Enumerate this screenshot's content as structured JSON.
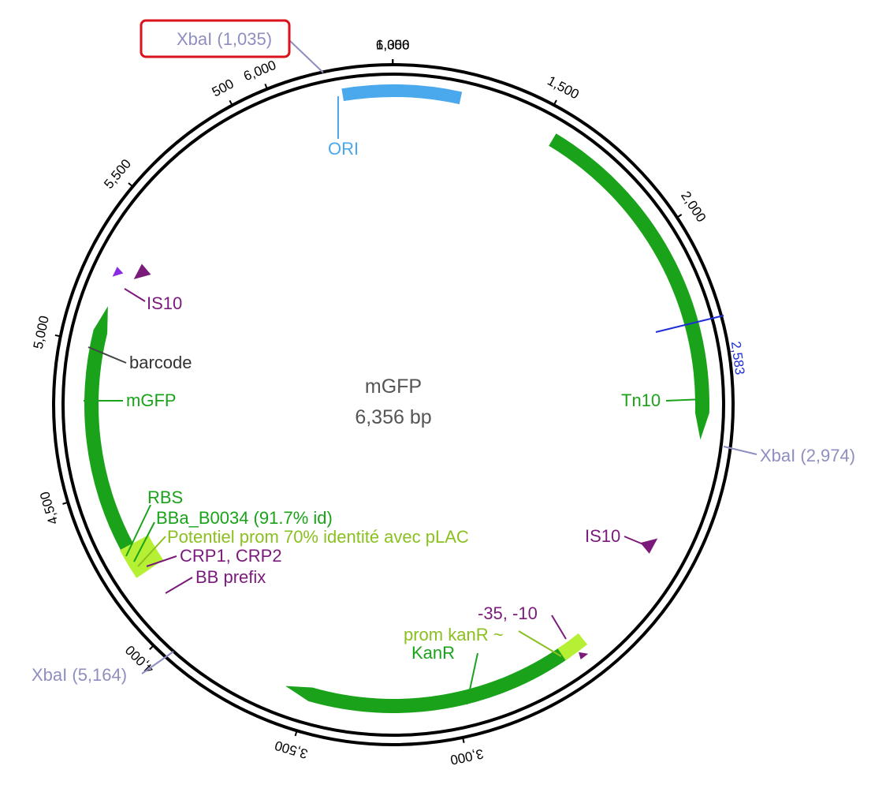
{
  "plasmid": {
    "name": "mGFP",
    "size_label": "6,356 bp",
    "length_bp": 6356
  },
  "colors": {
    "ring": "#000000",
    "ori": "#4aa8ec",
    "feature_green": "#1aa31a",
    "promoter_lime": "#b6f034",
    "purple": "#7a1a7a",
    "xbai": "#8e8ec0",
    "highlight_box": "#d9121b",
    "position_blue": "#1f2fd8"
  },
  "ticks": [
    {
      "label": "500"
    },
    {
      "label": "1,000"
    },
    {
      "label": "1,500"
    },
    {
      "label": "2,000"
    },
    {
      "label": "3,000"
    },
    {
      "label": "3,500"
    },
    {
      "label": "4,000"
    },
    {
      "label": "4,500"
    },
    {
      "label": "5,000"
    },
    {
      "label": "5,500"
    },
    {
      "label": "6,000"
    },
    {
      "label": "6,356"
    }
  ],
  "position_marker": {
    "label": "2,583"
  },
  "restriction_sites": [
    {
      "label": "XbaI (1,035)",
      "highlighted": true
    },
    {
      "label": "XbaI (2,974)",
      "highlighted": false
    },
    {
      "label": "XbaI (5,164)",
      "highlighted": false
    }
  ],
  "features": {
    "ori": "ORI",
    "tn10": "Tn10",
    "is10_top": "IS10",
    "is10_right": "IS10",
    "barcode": "barcode",
    "mgfp": "mGFP",
    "rbs": "RBS",
    "bba": "BBa_B0034 (91.7% id)",
    "potentiel": "Potentiel prom 70% identité avec pLAC",
    "crp": "CRP1, CRP2",
    "bb_prefix": "BB prefix",
    "minus35": "-35, -10",
    "prom_kanr": "prom kanR ~",
    "kanr": "KanR"
  }
}
